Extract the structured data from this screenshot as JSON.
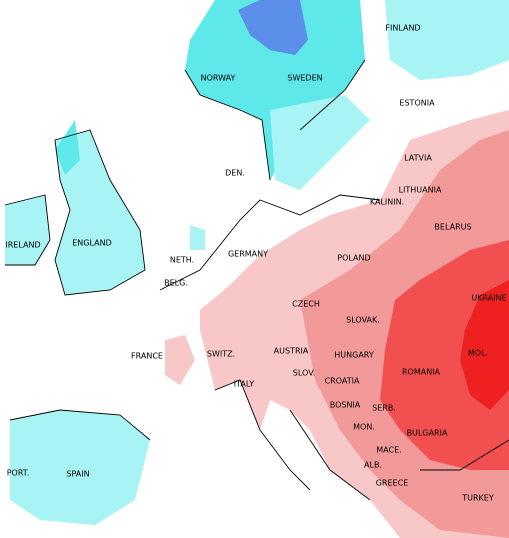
{
  "countries": [
    "FINLAND",
    "NORWAY",
    "SWEDEN",
    "ESTONIA",
    "DEN.",
    "LATVIA",
    "LITHUANIA",
    "KALININ.",
    "IRELAND",
    "ENGLAND",
    "BELARUS",
    "NETH.",
    "GERMANY",
    "POLAND",
    "BELG.",
    "UKRAINE",
    "CZECH",
    "SLOVAK.",
    "FRANCE",
    "SWITZ.",
    "AUSTRIA",
    "HUNGARY",
    "MOL.",
    "SLOV.",
    "CROATIA",
    "ROMANIA",
    "ITALY",
    "BOSNIA",
    "SERB.",
    "MON.",
    "BULGARIA",
    "MACE.",
    "ALB.",
    "GREECE",
    "TURKEY",
    "PORT.",
    "SPAIN"
  ]
}
